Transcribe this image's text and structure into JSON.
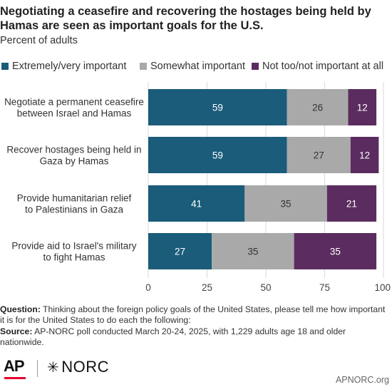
{
  "header": {
    "title": "Negotiating a ceasefire and recovering the hostages being held by Hamas are seen as important goals for the U.S.",
    "subtitle": "Percent of adults"
  },
  "legend": {
    "items": [
      {
        "label": "Extremely/very important",
        "color": "#1a5c7a"
      },
      {
        "label": "Somewhat important",
        "color": "#a9a9a9"
      },
      {
        "label": "Not too/not important at all",
        "color": "#5b2c5f"
      }
    ]
  },
  "chart_data": {
    "type": "bar",
    "orientation": "horizontal",
    "stacked": true,
    "categories": [
      [
        "Negotiate a permanent ceasefire",
        "between Israel and Hamas"
      ],
      [
        "Recover hostages being held in",
        "Gaza by Hamas"
      ],
      [
        "Provide humanitarian relief",
        "to Palestinians in Gaza"
      ],
      [
        "Provide aid to Israel's military",
        "to fight Hamas"
      ]
    ],
    "series": [
      {
        "name": "Extremely/very important",
        "values": [
          59,
          59,
          41,
          27
        ],
        "color": "#1a5c7a",
        "label_color": "#ffffff"
      },
      {
        "name": "Somewhat important",
        "values": [
          26,
          27,
          35,
          35
        ],
        "color": "#a9a9a9",
        "label_color": "#333333"
      },
      {
        "name": "Not too/not important at all",
        "values": [
          12,
          12,
          21,
          35
        ],
        "color": "#5b2c5f",
        "label_color": "#ffffff"
      }
    ],
    "xlim": [
      0,
      100
    ],
    "xticks": [
      0,
      25,
      50,
      75,
      100
    ],
    "xtick_labels": [
      "0",
      "25",
      "50",
      "75",
      "100"
    ],
    "grid": true,
    "legend_position": "top"
  },
  "footer": {
    "question_label": "Question:",
    "question_text": "Thinking about the foreign policy goals of the United States, please tell me how important it is for the United States to do each the following:",
    "source_label": "Source:",
    "source_text": "AP-NORC poll conducted March 20-24, 2025, with 1,229 adults age 18 and older nationwide.",
    "logo_ap": "AP",
    "logo_norc": "NORC",
    "site": "APNORC.org"
  }
}
